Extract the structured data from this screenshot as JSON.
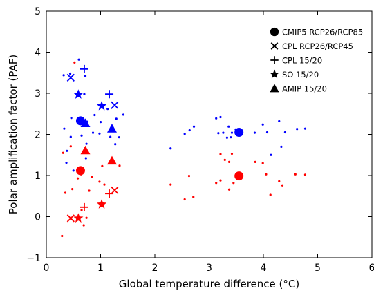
{
  "chart_data": {
    "type": "scatter",
    "xlabel": "Global temperature difference (°C)",
    "ylabel": "Polar amplification factor (PAF)",
    "xlim": [
      0,
      6
    ],
    "ylim": [
      -1,
      5
    ],
    "xticks": [
      "0",
      "1",
      "2",
      "3",
      "4",
      "5",
      "6"
    ],
    "yticks": [
      "−1",
      "0",
      "1",
      "2",
      "3",
      "4",
      "5"
    ],
    "grid": false,
    "legend_position": "top-right",
    "colors": {
      "north": "#0000ff",
      "south": "#ff0000",
      "legend": "#000000"
    },
    "legend": [
      {
        "label": "CMIP5 RCP26/RCP85",
        "marker": "circle"
      },
      {
        "label": "CPL RCP26/RCP45",
        "marker": "x"
      },
      {
        "label": "CPL 15/20",
        "marker": "plus"
      },
      {
        "label": "SO 15/20",
        "marker": "star"
      },
      {
        "label": "AMIP 15/20",
        "marker": "triangle"
      }
    ],
    "series": [
      {
        "color": "blue",
        "marker": "dot",
        "points": [
          [
            0.32,
            3.44
          ],
          [
            0.44,
            3.48
          ],
          [
            0.46,
            2.4
          ],
          [
            0.6,
            3.82
          ],
          [
            0.72,
            3.42
          ],
          [
            0.7,
            2.98
          ],
          [
            0.75,
            2.31
          ],
          [
            0.89,
            2.47
          ],
          [
            1.0,
            2.3
          ],
          [
            1.13,
            2.62
          ],
          [
            1.29,
            2.38
          ],
          [
            1.42,
            2.48
          ],
          [
            0.33,
            2.14
          ],
          [
            0.38,
            1.6
          ],
          [
            0.45,
            1.94
          ],
          [
            0.65,
            1.97
          ],
          [
            0.74,
            1.77
          ],
          [
            0.86,
            2.04
          ],
          [
            0.98,
            2.02
          ],
          [
            1.18,
            1.94
          ],
          [
            1.34,
            1.93
          ],
          [
            0.37,
            1.31
          ],
          [
            0.5,
            1.12
          ],
          [
            0.63,
            1.15
          ],
          [
            0.73,
            1.42
          ],
          [
            1.27,
            1.76
          ],
          [
            2.29,
            1.66
          ],
          [
            2.55,
            2.01
          ],
          [
            2.64,
            2.1
          ],
          [
            2.72,
            2.19
          ],
          [
            3.13,
            2.39
          ],
          [
            3.21,
            2.42
          ],
          [
            3.17,
            2.03
          ],
          [
            3.26,
            2.04
          ],
          [
            3.36,
            2.19
          ],
          [
            3.33,
            1.92
          ],
          [
            3.4,
            1.93
          ],
          [
            3.42,
            2.04
          ],
          [
            3.49,
            2.12
          ],
          [
            3.84,
            2.04
          ],
          [
            3.99,
            2.24
          ],
          [
            4.07,
            2.05
          ],
          [
            4.29,
            2.32
          ],
          [
            4.33,
            1.7
          ],
          [
            4.14,
            1.5
          ],
          [
            4.4,
            2.05
          ],
          [
            4.62,
            2.13
          ],
          [
            4.77,
            2.14
          ]
        ]
      },
      {
        "color": "red",
        "marker": "dot",
        "points": [
          [
            0.52,
            3.75
          ],
          [
            0.31,
            1.55
          ],
          [
            0.45,
            1.71
          ],
          [
            0.35,
            0.58
          ],
          [
            0.48,
            0.67
          ],
          [
            0.58,
            0.93
          ],
          [
            0.64,
            1.03
          ],
          [
            0.79,
            0.63
          ],
          [
            0.84,
            0.97
          ],
          [
            0.65,
            0.16
          ],
          [
            0.69,
            -0.21
          ],
          [
            0.29,
            -0.47
          ],
          [
            0.74,
            -0.03
          ],
          [
            0.98,
            0.85
          ],
          [
            1.03,
            1.23
          ],
          [
            1.07,
            0.78
          ],
          [
            1.35,
            1.24
          ],
          [
            2.29,
            0.78
          ],
          [
            2.55,
            0.42
          ],
          [
            2.63,
            0.99
          ],
          [
            2.71,
            0.48
          ],
          [
            3.13,
            0.82
          ],
          [
            3.21,
            1.52
          ],
          [
            3.21,
            0.88
          ],
          [
            3.29,
            1.38
          ],
          [
            3.37,
            1.33
          ],
          [
            3.42,
            1.53
          ],
          [
            3.37,
            0.66
          ],
          [
            3.45,
            0.82
          ],
          [
            3.85,
            1.33
          ],
          [
            3.99,
            1.3
          ],
          [
            4.05,
            1.03
          ],
          [
            4.13,
            0.53
          ],
          [
            4.29,
            0.86
          ],
          [
            4.35,
            0.76
          ],
          [
            4.59,
            1.03
          ],
          [
            4.77,
            1.02
          ]
        ]
      },
      {
        "color": "blue",
        "marker": "circle",
        "points": [
          [
            0.63,
            2.33
          ],
          [
            3.55,
            2.05
          ]
        ]
      },
      {
        "color": "red",
        "marker": "circle",
        "points": [
          [
            0.63,
            1.12
          ],
          [
            3.55,
            0.99
          ]
        ]
      },
      {
        "color": "blue",
        "marker": "x",
        "points": [
          [
            0.45,
            3.38
          ],
          [
            1.26,
            2.71
          ]
        ]
      },
      {
        "color": "red",
        "marker": "x",
        "points": [
          [
            0.45,
            -0.04
          ],
          [
            1.26,
            0.64
          ]
        ]
      },
      {
        "color": "blue",
        "marker": "plus",
        "points": [
          [
            0.7,
            3.59
          ],
          [
            1.16,
            2.98
          ]
        ]
      },
      {
        "color": "red",
        "marker": "plus",
        "points": [
          [
            0.7,
            0.23
          ],
          [
            1.16,
            0.56
          ]
        ]
      },
      {
        "color": "blue",
        "marker": "star",
        "points": [
          [
            0.59,
            2.97
          ],
          [
            1.02,
            2.69
          ]
        ]
      },
      {
        "color": "red",
        "marker": "star",
        "points": [
          [
            0.59,
            -0.04
          ],
          [
            1.02,
            0.3
          ]
        ]
      },
      {
        "color": "blue",
        "marker": "triangle",
        "points": [
          [
            0.72,
            2.27
          ],
          [
            1.21,
            2.14
          ]
        ]
      },
      {
        "color": "red",
        "marker": "triangle",
        "points": [
          [
            0.72,
            1.61
          ],
          [
            1.21,
            1.36
          ]
        ]
      }
    ]
  }
}
